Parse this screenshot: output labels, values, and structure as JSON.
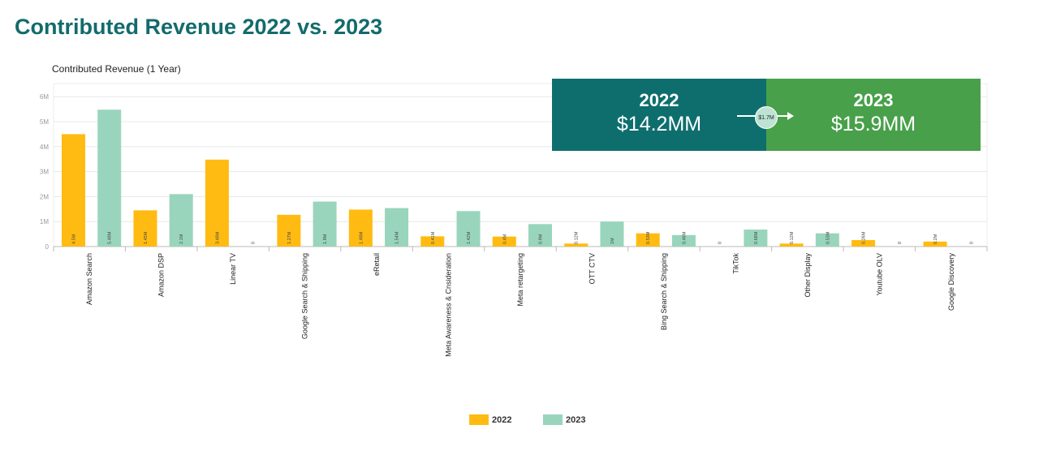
{
  "title": "Contributed Revenue 2022 vs. 2023",
  "chart_data": {
    "type": "bar",
    "title": "Contributed Revenue (1 Year)",
    "categories": [
      "Amazon Search",
      "Amazon DSP",
      "Linear TV",
      "Google Search & Shipping",
      "eRetail",
      "Meta Awareness & Cnsideration",
      "Meta retargeting",
      "OTT CTV",
      "Bing Search & Shipping",
      "TikTok",
      "Other Display",
      "Youtube OLV",
      "Google Discovery"
    ],
    "series": [
      {
        "name": "2022",
        "color": "#ffbb11",
        "values": [
          4.5,
          1.45,
          3.48,
          1.27,
          1.48,
          0.41,
          0.4,
          0.12,
          0.53,
          0,
          0.12,
          0.26,
          0.2
        ],
        "labels": [
          "4.5M",
          "1.45M",
          "3.48M",
          "1.27M",
          "1.48M",
          "0.41M",
          "0.4M",
          "0.12M",
          "0.53M",
          "0",
          "0.12M",
          "0.26M",
          "0.2M"
        ]
      },
      {
        "name": "2023",
        "color": "#99d5bc",
        "values": [
          5.48,
          2.1,
          0,
          1.8,
          1.54,
          1.42,
          0.9,
          1.0,
          0.46,
          0.68,
          0.53,
          0,
          0
        ],
        "labels": [
          "5.48M",
          "2.1M",
          "0",
          "1.8M",
          "1.54M",
          "1.42M",
          "0.9M",
          "1M",
          "0.46M",
          "0.68M",
          "0.53M",
          "0",
          "0"
        ]
      }
    ],
    "yticks": [
      "0",
      "1M",
      "2M",
      "3M",
      "4M",
      "5M",
      "6M"
    ],
    "ylim": [
      0,
      6.5
    ],
    "grid": true,
    "legend": "bottom"
  },
  "callout": {
    "left_year": "2022",
    "left_value": "$14.2MM",
    "right_year": "2023",
    "right_value": "$15.9MM",
    "difference": "$1.7M",
    "left_color": "#0e6e6e",
    "right_color": "#48a04a"
  }
}
